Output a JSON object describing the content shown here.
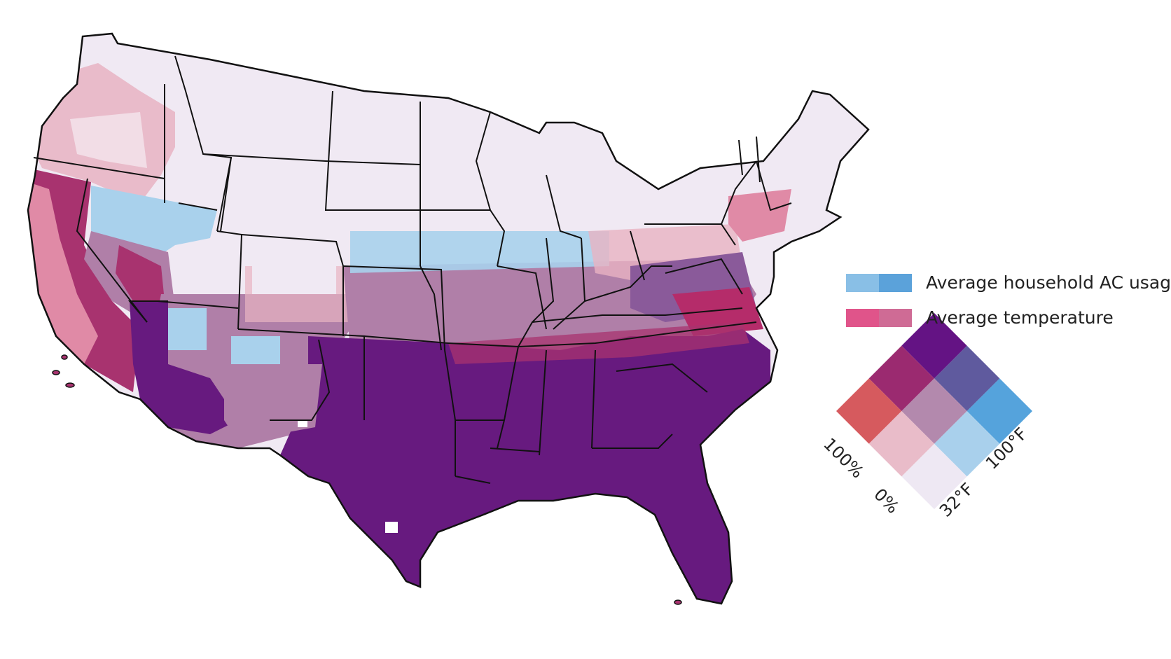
{
  "legend": {
    "ac_label": "Average household AC usage",
    "temp_label": "Average temperature",
    "ac_colors": [
      "#89bfe6",
      "#5ba2da"
    ],
    "temp_colors": [
      "#e0548a",
      "#cf6b95"
    ]
  },
  "bivariate_key": {
    "ac_min": "0%",
    "ac_max": "100%",
    "temp_min": "32°F",
    "temp_max": "100°F",
    "grid_colors": [
      [
        "#eee8f3",
        "#e9bcc9",
        "#d65a5e"
      ],
      [
        "#a9d0ec",
        "#b389ad",
        "#9b2a70"
      ],
      [
        "#55a3dc",
        "#5f5a9e",
        "#641384"
      ]
    ]
  },
  "map_colors": {
    "background": "#f0e9f3",
    "borders": "#111111",
    "hot_humid": "#671a7f",
    "warm_mid": "#b07fa8",
    "warm_pink": "#e8b3c2",
    "hot_dry": "#a8336f",
    "ac_light_blue": "#a9d1ec",
    "magenta": "#b52c6a"
  }
}
